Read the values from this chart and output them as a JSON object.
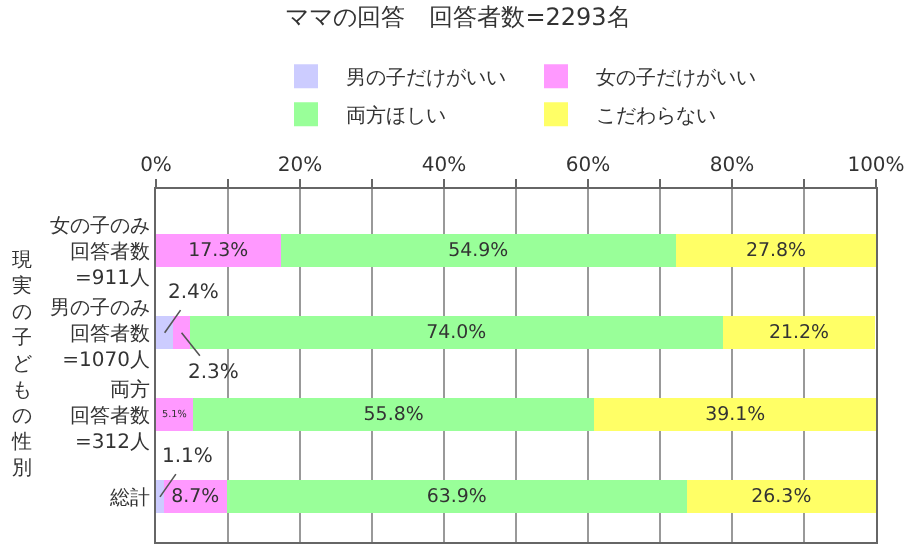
{
  "chart_data": {
    "type": "bar",
    "orientation": "horizontal",
    "stacked": true,
    "title": "ママの回答　回答者数=2293名",
    "ylabel": "現実の子どもの性別",
    "categories": [
      "女の子のみ回答者数=911人",
      "男の子のみ回答者数=1070人",
      "両方回答者数=312人",
      "総計"
    ],
    "series": [
      {
        "name": "男の子だけがいい",
        "color": "#ccccff",
        "values": [
          null,
          2.4,
          null,
          1.1
        ],
        "value_labels": [
          null,
          "2.4%",
          null,
          "1.1%"
        ]
      },
      {
        "name": "女の子だけがいい",
        "color": "#ff99ff",
        "values": [
          17.3,
          2.3,
          5.1,
          8.7
        ],
        "value_labels": [
          "17.3%",
          "2.3%",
          "5.1%",
          "8.7%"
        ]
      },
      {
        "name": "両方ほしい",
        "color": "#99ff99",
        "values": [
          54.9,
          74.0,
          55.8,
          63.9
        ],
        "value_labels": [
          "54.9%",
          "74.0%",
          "55.8%",
          "63.9%"
        ]
      },
      {
        "name": "こだわらない",
        "color": "#ffff66",
        "values": [
          27.8,
          21.2,
          39.1,
          26.3
        ],
        "value_labels": [
          "27.8%",
          "21.2%",
          "39.1%",
          "26.3%"
        ]
      }
    ],
    "xlim": [
      0,
      100
    ],
    "xticks": [
      {
        "value": 0,
        "label": "0%"
      },
      {
        "value": 10,
        "label": null
      },
      {
        "value": 20,
        "label": "20%"
      },
      {
        "value": 30,
        "label": null
      },
      {
        "value": 40,
        "label": "40%"
      },
      {
        "value": 50,
        "label": null
      },
      {
        "value": 60,
        "label": "60%"
      },
      {
        "value": 70,
        "label": null
      },
      {
        "value": 80,
        "label": "80%"
      },
      {
        "value": 90,
        "label": null
      },
      {
        "value": 100,
        "label": "100%"
      }
    ],
    "grid": "x",
    "legend": "top"
  }
}
